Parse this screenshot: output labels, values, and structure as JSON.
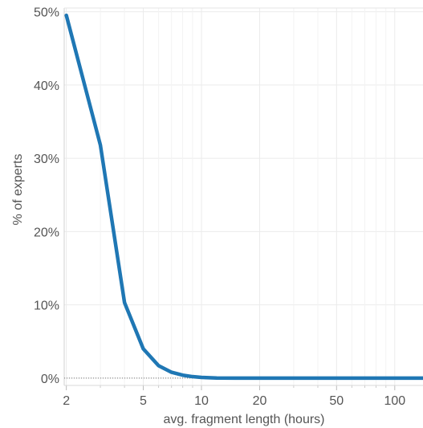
{
  "chart_data": {
    "type": "line",
    "xlabel": "avg. fragment length (hours)",
    "ylabel": "% of experts",
    "x_scale": "log",
    "xlim": [
      1.95,
      140
    ],
    "ylim": [
      -0.01,
      0.505
    ],
    "x_ticks": [
      {
        "value": 2,
        "label": "2"
      },
      {
        "value": 5,
        "label": "5"
      },
      {
        "value": 10,
        "label": "10"
      },
      {
        "value": 20,
        "label": "20"
      },
      {
        "value": 50,
        "label": "50"
      },
      {
        "value": 100,
        "label": "100"
      }
    ],
    "x_minor_ticks": [
      3,
      4,
      6,
      7,
      8,
      9,
      30,
      40,
      60,
      70,
      80,
      90
    ],
    "y_ticks": [
      {
        "value": 0,
        "label": "0%"
      },
      {
        "value": 0.1,
        "label": "10%"
      },
      {
        "value": 0.2,
        "label": "20%"
      },
      {
        "value": 0.3,
        "label": "30%"
      },
      {
        "value": 0.4,
        "label": "40%"
      },
      {
        "value": 0.5,
        "label": "50%"
      }
    ],
    "grid": true,
    "zero_reference_line": true,
    "series": [
      {
        "color": "#1f77b4",
        "points": [
          [
            2,
            0.495
          ],
          [
            3,
            0.318
          ],
          [
            4,
            0.103
          ],
          [
            5,
            0.04
          ],
          [
            6,
            0.017
          ],
          [
            7,
            0.008
          ],
          [
            8,
            0.004
          ],
          [
            9,
            0.002
          ],
          [
            10,
            0.001
          ],
          [
            12,
            0.0002
          ],
          [
            15,
            0.0
          ],
          [
            20,
            0.0
          ],
          [
            50,
            0.0
          ],
          [
            100,
            0.0
          ],
          [
            140,
            0.0
          ]
        ]
      }
    ]
  }
}
